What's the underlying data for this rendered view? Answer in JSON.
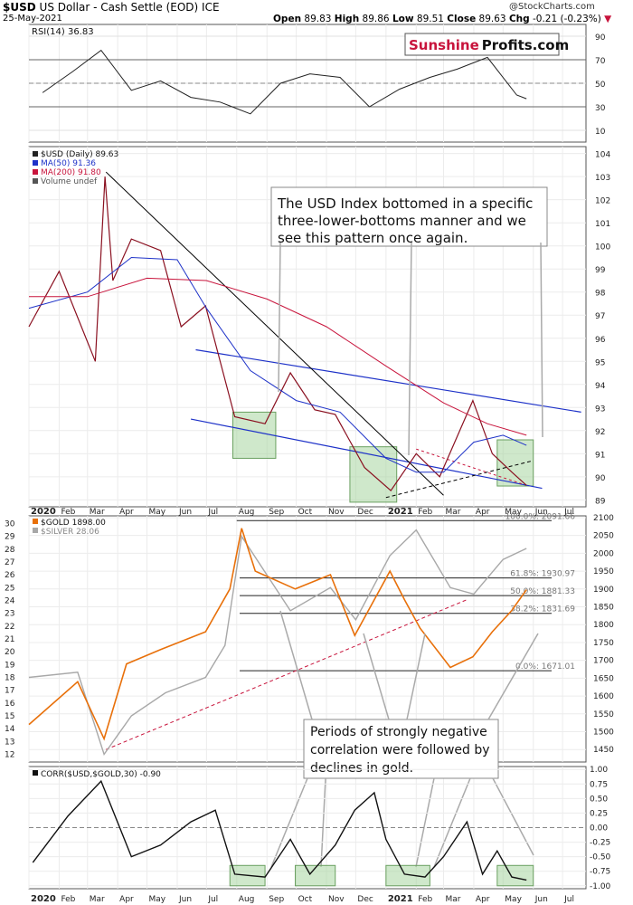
{
  "header": {
    "symbol": "$USD",
    "name": "US Dollar - Cash Settle (EOD)",
    "exchange": "ICE",
    "date": "25-May-2021",
    "watermark": "@StockCharts.com",
    "open_label": "Open",
    "open": "89.83",
    "high_label": "High",
    "high": "89.86",
    "low_label": "Low",
    "low": "89.51",
    "close_label": "Close",
    "close": "89.63",
    "chg_label": "Chg",
    "chg": "-0.21 (-0.23%)",
    "chg_marker": "▼"
  },
  "logo": {
    "part1": "Sunshine",
    "part2": "Profits.com"
  },
  "colors": {
    "orange": "#e8700a",
    "gray": "#a8a8a8",
    "blue": "#1e32c8",
    "red": "#c8143c",
    "green_band": "#a8d6a0",
    "line_black": "#000000"
  },
  "annotations": {
    "usd": "The USD Index bottomed in a specific three-lower-bottoms manner and we see this pattern once again.",
    "gold": "Periods of strongly negative correlation were followed by declines in gold."
  },
  "chart_data": [
    {
      "type": "line",
      "panel": "rsi",
      "legend": [
        "RSI(14) 36.83"
      ],
      "ylim": [
        0,
        100
      ],
      "yticks": [
        10,
        30,
        50,
        70,
        90
      ],
      "x": [
        "2020-01",
        "2020-02",
        "2020-03",
        "2020-04",
        "2020-05",
        "2020-06",
        "2020-07",
        "2020-08",
        "2020-09",
        "2020-10",
        "2020-11",
        "2020-12",
        "2021-01",
        "2021-02",
        "2021-03",
        "2021-04",
        "2021-05",
        "2021-05-25"
      ],
      "values": [
        42,
        60,
        78,
        44,
        52,
        38,
        34,
        24,
        50,
        58,
        55,
        30,
        45,
        55,
        62,
        72,
        40,
        36.83
      ]
    },
    {
      "type": "line",
      "panel": "usd",
      "legend": [
        "$USD (Daily) 89.63",
        "MA(50) 91.36",
        "MA(200) 91.80",
        "Volume undef"
      ],
      "ylim": [
        88.7,
        104.3
      ],
      "yticks": [
        89,
        90,
        91,
        92,
        93,
        94,
        95,
        96,
        97,
        98,
        99,
        100,
        101,
        102,
        103,
        104
      ],
      "xticks": [
        "2020",
        "Feb",
        "Mar",
        "Apr",
        "May",
        "Jun",
        "Jul",
        "Aug",
        "Sep",
        "Oct",
        "Nov",
        "Dec",
        "2021",
        "Feb",
        "Mar",
        "Apr",
        "May",
        "Jun",
        "Jul"
      ],
      "series": [
        {
          "name": "$USD (Daily)",
          "x": [
            "2020-01-01",
            "2020-02-01",
            "2020-03-09",
            "2020-03-19",
            "2020-03-27",
            "2020-04-15",
            "2020-05-15",
            "2020-06-05",
            "2020-06-30",
            "2020-07-30",
            "2020-08-30",
            "2020-09-25",
            "2020-10-20",
            "2020-11-10",
            "2020-12-10",
            "2021-01-06",
            "2021-02-01",
            "2021-02-25",
            "2021-03-31",
            "2021-04-20",
            "2021-05-10",
            "2021-05-25"
          ],
          "values": [
            96.5,
            98.9,
            95.0,
            103.0,
            98.5,
            100.3,
            99.8,
            96.5,
            97.4,
            92.6,
            92.3,
            94.5,
            92.9,
            92.7,
            90.4,
            89.4,
            91.0,
            90.0,
            93.3,
            91.0,
            90.2,
            89.63
          ]
        },
        {
          "name": "MA(50)",
          "x": [
            "2020-01-01",
            "2020-03-01",
            "2020-04-15",
            "2020-06-01",
            "2020-07-01",
            "2020-08-15",
            "2020-10-01",
            "2020-11-15",
            "2021-01-01",
            "2021-02-01",
            "2021-03-01",
            "2021-04-01",
            "2021-05-01",
            "2021-05-25"
          ],
          "values": [
            97.3,
            98.0,
            99.5,
            99.4,
            97.3,
            94.6,
            93.3,
            92.8,
            90.8,
            90.2,
            90.2,
            91.5,
            91.8,
            91.36
          ]
        },
        {
          "name": "MA(200)",
          "x": [
            "2020-01-01",
            "2020-03-01",
            "2020-05-01",
            "2020-07-01",
            "2020-09-01",
            "2020-11-01",
            "2021-01-01",
            "2021-03-01",
            "2021-04-15",
            "2021-05-25"
          ],
          "values": [
            97.8,
            97.8,
            98.6,
            98.5,
            97.7,
            96.5,
            94.8,
            93.2,
            92.3,
            91.8
          ]
        }
      ],
      "notes": [
        "Channel of two declining blue parallel lines",
        "Green boxes mark the three bottoms"
      ]
    },
    {
      "type": "line",
      "panel": "gold",
      "legend": [
        "$GOLD 1898.00",
        "$SILVER 28.06"
      ],
      "ylim_left": [
        11.4,
        30.6
      ],
      "ylim_right": [
        1415,
        2105
      ],
      "yticks_left": [
        12,
        13,
        14,
        15,
        16,
        17,
        18,
        19,
        20,
        21,
        22,
        23,
        24,
        25,
        26,
        27,
        28,
        29,
        30
      ],
      "yticks_right": [
        1450,
        1500,
        1550,
        1600,
        1650,
        1700,
        1750,
        1800,
        1850,
        1900,
        1950,
        2000,
        2050,
        2100
      ],
      "fib": [
        {
          "label": "100.0%: 2091.66",
          "value": 2091.66
        },
        {
          "label": "61.8%: 1930.97",
          "value": 1930.97
        },
        {
          "label": "50.0%: 1881.33",
          "value": 1881.33
        },
        {
          "label": "38.2%: 1831.69",
          "value": 1831.69
        },
        {
          "label": "0.0%: 1671.01",
          "value": 1671.01
        }
      ],
      "series": [
        {
          "name": "$GOLD",
          "axis": "right",
          "x": [
            "2020-01-01",
            "2020-02-20",
            "2020-03-18",
            "2020-04-10",
            "2020-05-15",
            "2020-06-30",
            "2020-07-25",
            "2020-08-06",
            "2020-08-20",
            "2020-09-30",
            "2020-11-05",
            "2020-11-30",
            "2021-01-05",
            "2021-01-20",
            "2021-02-05",
            "2021-03-08",
            "2021-03-31",
            "2021-04-20",
            "2021-05-10",
            "2021-05-25"
          ],
          "values": [
            1520,
            1640,
            1480,
            1690,
            1730,
            1780,
            1900,
            2070,
            1950,
            1900,
            1940,
            1770,
            1950,
            1870,
            1790,
            1680,
            1710,
            1780,
            1840,
            1898
          ]
        },
        {
          "name": "$SILVER",
          "axis": "left",
          "x": [
            "2020-01-01",
            "2020-02-20",
            "2020-03-18",
            "2020-04-15",
            "2020-05-20",
            "2020-06-30",
            "2020-07-20",
            "2020-08-06",
            "2020-09-25",
            "2020-11-05",
            "2020-12-01",
            "2021-01-05",
            "2021-02-01",
            "2021-03-08",
            "2021-04-01",
            "2021-05-01",
            "2021-05-25"
          ],
          "values": [
            18.0,
            18.4,
            12.0,
            15.0,
            16.8,
            18.0,
            20.5,
            29.0,
            23.2,
            25.0,
            22.5,
            27.5,
            29.5,
            25.0,
            24.5,
            27.2,
            28.06
          ]
        }
      ]
    },
    {
      "type": "line",
      "panel": "corr",
      "legend": [
        "CORR($USD,$GOLD,30) -0.90"
      ],
      "ylim": [
        -1.05,
        1.05
      ],
      "yticks": [
        -1.0,
        -0.75,
        -0.5,
        -0.25,
        0.0,
        0.25,
        0.5,
        0.75,
        1.0
      ],
      "x": [
        "2020-01-05",
        "2020-02-10",
        "2020-03-15",
        "2020-04-15",
        "2020-05-15",
        "2020-06-15",
        "2020-07-10",
        "2020-07-30",
        "2020-08-30",
        "2020-09-25",
        "2020-10-15",
        "2020-11-10",
        "2020-11-30",
        "2020-12-20",
        "2021-01-01",
        "2021-01-20",
        "2021-02-10",
        "2021-03-01",
        "2021-03-25",
        "2021-04-10",
        "2021-04-25",
        "2021-05-10",
        "2021-05-25"
      ],
      "values": [
        -0.6,
        0.2,
        0.8,
        -0.5,
        -0.3,
        0.1,
        0.3,
        -0.8,
        -0.85,
        -0.2,
        -0.8,
        -0.3,
        0.3,
        0.6,
        -0.2,
        -0.8,
        -0.85,
        -0.5,
        0.1,
        -0.8,
        -0.4,
        -0.85,
        -0.9
      ]
    }
  ]
}
